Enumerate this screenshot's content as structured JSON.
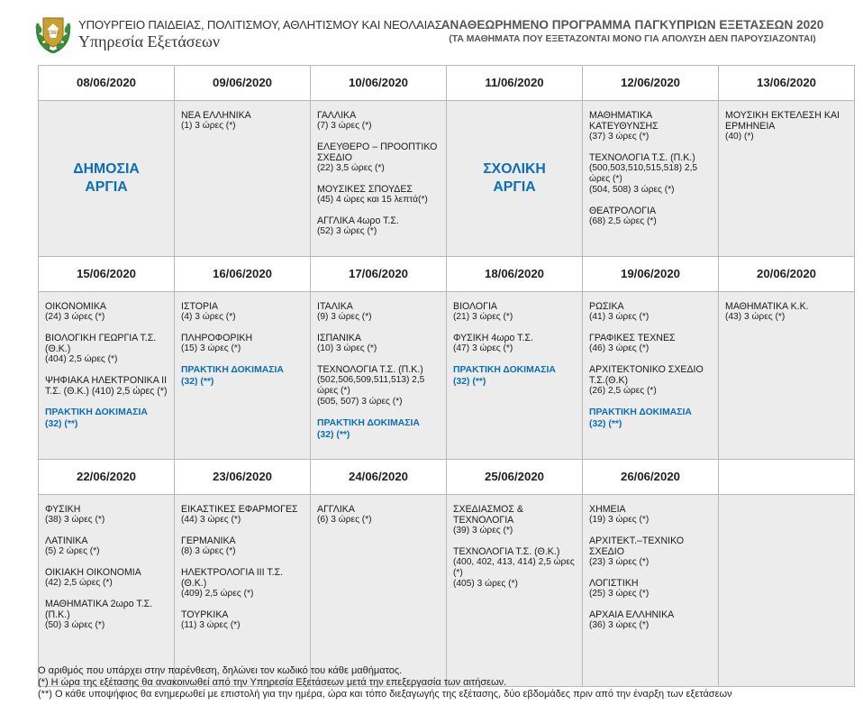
{
  "header": {
    "ministry": "ΥΠΟΥΡΓΕΙΟ ΠΑΙΔΕΙΑΣ, ΠΟΛΙΤΙΣΜΟΥ, ΑΘΛΗΤΙΣΜΟΥ ΚΑΙ ΝΕΟΛΑΙΑΣ",
    "service": "Υπηρεσία Εξετάσεων",
    "title": "ΑΝΑΘΕΩΡΗΜΕΝΟ ΠΡΟΓΡΑΜΜΑ ΠΑΓΚΥΠΡΙΩΝ ΕΞΕΤΑΣΕΩΝ 2020",
    "subtitle": "(ΤΑ ΜΑΘΗΜΑΤΑ ΠΟΥ ΕΞΕΤΑΖΟΝΤΑΙ ΜΟΝΟ ΓΙΑ ΑΠΟΛΥΣΗ ΔΕΝ ΠΑΡΟΥΣΙΑΖΟΝΤΑΙ)",
    "emblem_icon": "cyprus-emblem-icon"
  },
  "colors": {
    "accent_blue": "#0b6fb5",
    "cell_gray": "#ececec",
    "border": "#b8b8b8"
  },
  "weeks": [
    {
      "days": [
        {
          "date": "08/06/2020",
          "holiday": "ΔΗΜΟΣΙΑ ΑΡΓΙΑ",
          "exams": []
        },
        {
          "date": "09/06/2020",
          "exams": [
            {
              "subject": "ΝΕΑ ΕΛΛΗΝΙΚΑ",
              "detail": "(1)  3 ώρες (*)"
            }
          ]
        },
        {
          "date": "10/06/2020",
          "exams": [
            {
              "subject": "ΓΑΛΛΙΚΑ",
              "detail": "(7)  3 ώρες (*)"
            },
            {
              "subject": "ΕΛΕΥΘΕΡΟ – ΠΡΟΟΠΤΙΚΟ ΣΧΕΔΙΟ",
              "detail": "(22)  3,5 ώρες (*)"
            },
            {
              "subject": "ΜΟΥΣΙΚΕΣ ΣΠΟΥΔΕΣ",
              "detail": "(45)  4 ώρες και 15 λεπτά(*)"
            },
            {
              "subject": "ΑΓΓΛΙΚΑ 4ωρο Τ.Σ.",
              "detail": "(52)  3 ώρες (*)"
            }
          ]
        },
        {
          "date": "11/06/2020",
          "holiday": "ΣΧΟΛΙΚΗ ΑΡΓΙΑ",
          "exams": []
        },
        {
          "date": "12/06/2020",
          "exams": [
            {
              "subject": "ΜΑΘΗΜΑΤΙΚΑ ΚΑΤΕΥΘΥΝΣΗΣ",
              "detail": "(37)  3 ώρες (*)"
            },
            {
              "subject": "ΤΕΧΝΟΛΟΓΙΑ Τ.Σ. (Π.Κ.)",
              "detail": "(500,503,510,515,518) 2,5 ώρες (*)",
              "detail2": "(504, 508)  3 ώρες (*)"
            },
            {
              "subject": "ΘΕΑΤΡΟΛΟΓΙΑ",
              "detail": "(68)  2,5 ώρες (*)"
            }
          ]
        },
        {
          "date": "13/06/2020",
          "exams": [
            {
              "subject": "ΜΟΥΣΙΚΗ ΕΚΤΕΛΕΣΗ ΚΑΙ ΕΡΜΗΝΕΙΑ",
              "detail": "(40)  (*)"
            }
          ]
        }
      ]
    },
    {
      "days": [
        {
          "date": "15/06/2020",
          "exams": [
            {
              "subject": "ΟΙΚΟΝΟΜΙΚΑ",
              "detail": "(24)  3 ώρες (*)"
            },
            {
              "subject": "ΒΙΟΛΟΓΙΚΗ ΓΕΩΡΓΙΑ Τ.Σ. (Θ.Κ.)",
              "detail": "(404) 2,5 ώρες (*)"
            },
            {
              "subject": "ΨΗΦΙΑΚΑ ΗΛΕΚΤΡΟΝΙΚΑ ΙΙ Τ.Σ. (Θ.Κ.) (410)  2,5 ώρες (*)",
              "detail": ""
            }
          ],
          "practical": {
            "label": "ΠΡΑΚΤΙΚΗ ΔΟΚΙΜΑΣΙΑ",
            "detail": "(32) (**)"
          }
        },
        {
          "date": "16/06/2020",
          "exams": [
            {
              "subject": "ΙΣΤΟΡΙΑ",
              "detail": "(4)  3 ώρες (*)"
            },
            {
              "subject": "ΠΛΗΡΟΦΟΡΙΚΗ",
              "detail": "(15)  3 ώρες (*)"
            }
          ],
          "practical": {
            "label": "ΠΡΑΚΤΙΚΗ ΔΟΚΙΜΑΣΙΑ",
            "detail": "(32) (**)"
          }
        },
        {
          "date": "17/06/2020",
          "exams": [
            {
              "subject": "ΙΤΑΛΙΚΑ",
              "detail": "(9)  3 ώρες (*)"
            },
            {
              "subject": "ΙΣΠΑΝΙΚΑ",
              "detail": "(10)  3 ώρες (*)"
            },
            {
              "subject": "ΤΕΧΝΟΛΟΓΙΑ Τ.Σ. (Π.Κ.)",
              "detail": "(502,506,509,511,513)  2,5 ώρες (*)",
              "detail2": "(505, 507)  3 ώρες (*)"
            }
          ],
          "practical": {
            "label": "ΠΡΑΚΤΙΚΗ ΔΟΚΙΜΑΣΙΑ",
            "detail": "(32) (**)"
          }
        },
        {
          "date": "18/06/2020",
          "exams": [
            {
              "subject": "ΒΙΟΛΟΓΙΑ",
              "detail": "(21)  3 ώρες (*)"
            },
            {
              "subject": "ΦΥΣΙΚΗ 4ωρο Τ.Σ.",
              "detail": "(47)  3 ώρες (*)"
            }
          ],
          "practical": {
            "label": "ΠΡΑΚΤΙΚΗ ΔΟΚΙΜΑΣΙΑ",
            "detail": "(32) (**)"
          }
        },
        {
          "date": "19/06/2020",
          "exams": [
            {
              "subject": "ΡΩΣΙΚΑ",
              "detail": "(41)  3 ώρες (*)"
            },
            {
              "subject": "ΓΡΑΦΙΚΕΣ ΤΕΧΝΕΣ",
              "detail": "(46)  3 ώρες (*)"
            },
            {
              "subject": "ΑΡΧΙΤΕΚΤΟΝΙΚΟ ΣΧΕΔΙΟ Τ.Σ.(Θ.Κ)",
              "detail": "(26)  2,5 ώρες (*)"
            }
          ],
          "practical": {
            "label": "ΠΡΑΚΤΙΚΗ ΔΟΚΙΜΑΣΙΑ",
            "detail": "(32) (**)"
          }
        },
        {
          "date": "20/06/2020",
          "exams": [
            {
              "subject": "ΜΑΘΗΜΑΤΙΚΑ Κ.Κ.",
              "detail": "(43)  3 ώρες (*)"
            }
          ]
        }
      ]
    },
    {
      "days": [
        {
          "date": "22/06/2020",
          "exams": [
            {
              "subject": "ΦΥΣΙΚΗ",
              "detail": "(38)  3 ώρες (*)"
            },
            {
              "subject": "ΛΑΤΙΝΙΚΑ",
              "detail": "(5)  2 ώρες (*)"
            },
            {
              "subject": "ΟΙΚΙΑΚΗ ΟΙΚΟΝΟΜΙΑ",
              "detail": "(42)  2,5 ώρες (*)"
            },
            {
              "subject": "ΜΑΘΗΜΑΤΙΚΑ 2ωρο Τ.Σ. (Π.Κ.)",
              "detail": "(50)  3 ώρες (*)"
            }
          ]
        },
        {
          "date": "23/06/2020",
          "exams": [
            {
              "subject": "ΕΙΚΑΣΤΙΚΕΣ ΕΦΑΡΜΟΓΕΣ",
              "detail": "(44)  3 ώρες (*)"
            },
            {
              "subject": "ΓΕΡΜΑΝΙΚΑ",
              "detail": "(8)  3 ώρες (*)"
            },
            {
              "subject": "ΗΛΕΚΤΡΟΛΟΓΙΑ ΙΙΙ Τ.Σ.(Θ.Κ.)",
              "detail": "(409)  2,5 ώρες (*)"
            },
            {
              "subject": "ΤΟΥΡΚΙΚΑ",
              "detail": "(11)  3 ώρες (*)"
            }
          ]
        },
        {
          "date": "24/06/2020",
          "exams": [
            {
              "subject": "ΑΓΓΛΙΚΑ",
              "detail": "(6)  3 ώρες (*)"
            }
          ]
        },
        {
          "date": "25/06/2020",
          "exams": [
            {
              "subject": "ΣΧΕΔΙΑΣΜΟΣ & ΤΕΧΝΟΛΟΓΙΑ",
              "detail": "(39)  3 ώρες (*)"
            },
            {
              "subject": "ΤΕΧΝΟΛΟΓΙΑ Τ.Σ. (Θ.Κ.)",
              "detail": "(400, 402, 413, 414)  2,5 ώρες (*)",
              "detail2": "(405)  3 ώρες (*)"
            }
          ]
        },
        {
          "date": "26/06/2020",
          "exams": [
            {
              "subject": "ΧΗΜΕΙΑ",
              "detail": "(19)  3 ώρες (*)"
            },
            {
              "subject": "ΑΡΧΙΤΕΚΤ.–ΤΕΧΝΙΚΟ ΣΧΕΔΙΟ",
              "detail": "(23)  3 ώρες (*)"
            },
            {
              "subject": "ΛΟΓΙΣΤΙΚΗ",
              "detail": "(25)  3 ώρες (*)"
            },
            {
              "subject": "ΑΡΧΑΙΑ ΕΛΛΗΝΙΚΑ",
              "detail": "(36)  3 ώρες (*)"
            }
          ]
        },
        {
          "date": "",
          "exams": []
        }
      ]
    }
  ],
  "notes": [
    "Ο αριθμός που υπάρχει στην παρένθεση, δηλώνει τον κωδικό του κάθε μαθήματος.",
    "(*) Η ώρα της εξέτασης θα ανακοινωθεί από την Υπηρεσία Εξετάσεων μετά την επεξεργασία των αιτήσεων.",
    "(**) Ο κάθε υποψήφιος θα ενημερωθεί με επιστολή για την ημέρα, ώρα και τόπο διεξαγωγής της εξέτασης, δύο εβδομάδες πριν από την έναρξη των εξετάσεων"
  ]
}
